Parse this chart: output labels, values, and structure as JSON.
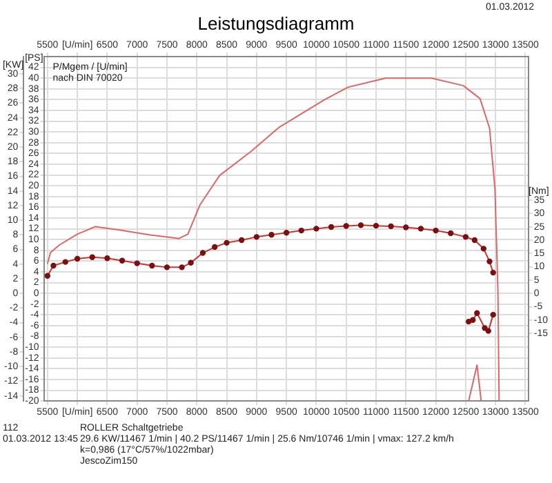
{
  "chart_data": {
    "type": "line",
    "title": "Leistungsdiagramm",
    "ylabel": "[PS]",
    "y3label": "[KW]",
    "y2label": "[Nm]",
    "xlim": [
      5450,
      13550
    ],
    "xticks": [
      5500,
      {
        "value": 6000,
        "label": "[U/min]"
      },
      6500,
      7000,
      7500,
      8000,
      8500,
      9000,
      9500,
      10000,
      10500,
      11000,
      11500,
      12000,
      12500,
      13000,
      13500
    ],
    "x2lim": [
      5450,
      13550
    ],
    "x2ticks": [
      5500,
      {
        "value": 6000,
        "label": "[U/min]"
      },
      6500,
      7000,
      7500,
      8000,
      8500,
      9000,
      9500,
      10000,
      10500,
      11000,
      11500,
      12000,
      12500,
      13000,
      13500
    ],
    "ylim": [
      -20,
      44
    ],
    "yticks": [
      -20,
      -18,
      -16,
      -14,
      -12,
      -10,
      -8,
      -6,
      -4,
      -2,
      0,
      2,
      4,
      6,
      8,
      10,
      12,
      14,
      16,
      18,
      20,
      22,
      24,
      26,
      28,
      30,
      32,
      34,
      36,
      38,
      40,
      42
    ],
    "y3lim": [
      -14.71,
      32.36
    ],
    "y3ticks": [
      -14,
      -12,
      -10,
      -8,
      -6,
      -4,
      -2,
      0,
      2,
      4,
      6,
      8,
      10,
      12,
      14,
      16,
      18,
      20,
      22,
      24,
      26,
      28,
      30
    ],
    "y2lim": [
      -40.4,
      88.89
    ],
    "y2ticks": [
      -15,
      -10,
      -5,
      0,
      5,
      10,
      15,
      20,
      25,
      30,
      35
    ],
    "grid": true,
    "legend": false,
    "series": [
      {
        "color": "#e06666",
        "marker": "none",
        "x": [
          5500,
          5550,
          5700,
          6000,
          6300,
          6700,
          7200,
          7700,
          7850,
          8050,
          8380,
          8910,
          9370,
          10140,
          10530,
          11160,
          11930,
          12460,
          12740,
          12900,
          12990,
          13040,
          13060
        ],
        "values": [
          5.5,
          7.6,
          9,
          11,
          12.4,
          11.8,
          10.9,
          10.2,
          11,
          16.4,
          21.9,
          26.4,
          30.8,
          36,
          38.3,
          40,
          40,
          38.6,
          36.2,
          30.7,
          19.5,
          0.5,
          -20
        ]
      },
      {
        "color": "#e06666",
        "marker": "none",
        "x": [
          12550,
          12690,
          12760
        ],
        "values": [
          -20,
          -13.3,
          -20
        ]
      },
      {
        "color": "#d03030",
        "marker": "circle",
        "axis": "y2",
        "x": [
          5500,
          5600,
          5800,
          6000,
          6250,
          6500,
          6750,
          7000,
          7250,
          7500,
          7750,
          7900,
          8100,
          8300,
          8500,
          8750,
          9000,
          9250,
          9500,
          9750,
          10000,
          10250,
          10500,
          10746,
          11000,
          11250,
          11500,
          11750,
          12000,
          12250,
          12500,
          12650,
          12800,
          12900,
          12960
        ],
        "values": [
          6.6,
          10.4,
          11.8,
          13,
          13.6,
          13.2,
          12.3,
          11.3,
          10.4,
          9.8,
          9.8,
          11.5,
          15.2,
          17.4,
          19,
          20,
          21.2,
          22,
          22.8,
          23.6,
          24.3,
          24.9,
          25.3,
          25.6,
          25.4,
          25.2,
          24.8,
          24.3,
          23.6,
          22.6,
          21.2,
          20,
          16.8,
          12,
          7.8
        ]
      },
      {
        "color": "#d03030",
        "marker": "circle",
        "axis": "y2",
        "x": [
          12550,
          12620,
          12690,
          12820,
          12880,
          12960
        ],
        "values": [
          -10.6,
          -10,
          -7.4,
          -13,
          -14.1,
          -8
        ]
      }
    ],
    "annotations": [
      "01.03.2012",
      "P/Mgem / [U/min]",
      "nach DIN 70020",
      "112",
      "ROLLER Schaltgetriebe",
      "01.03.2012  13:45",
      "29.6 KW/11467 1/min  |  40.2 PS/11467 1/min  |  25.6 Nm/10746 1/min  | vmax: 127.2 km/h",
      "k=0,986 (17°C/57%/1022mbar)",
      "JescoZim150"
    ]
  }
}
